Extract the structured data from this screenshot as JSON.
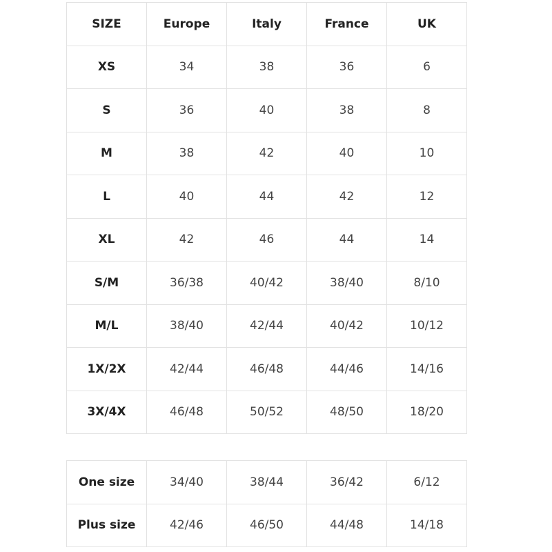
{
  "size_chart": {
    "headers": [
      "SIZE",
      "Europe",
      "Italy",
      "France",
      "UK"
    ],
    "rows": [
      [
        "XS",
        "34",
        "38",
        "36",
        "6"
      ],
      [
        "S",
        "36",
        "40",
        "38",
        "8"
      ],
      [
        "M",
        "38",
        "42",
        "40",
        "10"
      ],
      [
        "L",
        "40",
        "44",
        "42",
        "12"
      ],
      [
        "XL",
        "42",
        "46",
        "44",
        "14"
      ],
      [
        "S/M",
        "36/38",
        "40/42",
        "38/40",
        "8/10"
      ],
      [
        "M/L",
        "38/40",
        "42/44",
        "40/42",
        "10/12"
      ],
      [
        "1X/2X",
        "42/44",
        "46/48",
        "44/46",
        "14/16"
      ],
      [
        "3X/4X",
        "46/48",
        "50/52",
        "48/50",
        "18/20"
      ]
    ]
  },
  "extra_sizes": {
    "rows": [
      [
        "One size",
        "34/40",
        "38/44",
        "36/42",
        "6/12"
      ],
      [
        "Plus size",
        "42/46",
        "46/50",
        "44/48",
        "14/18"
      ]
    ]
  }
}
